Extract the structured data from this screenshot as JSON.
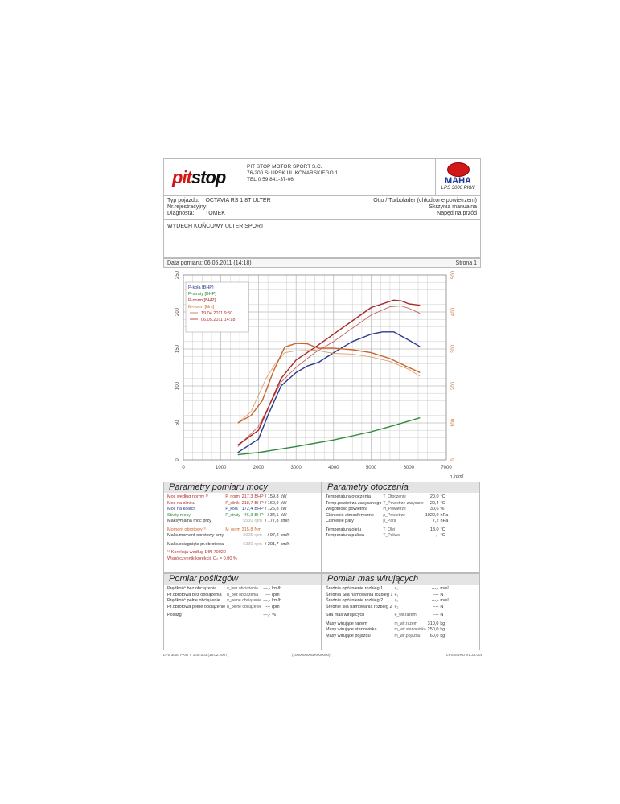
{
  "header": {
    "logo": "pit stop",
    "company": [
      "PIT STOP MOTOR SPORT S.C.",
      "76-200 SŁUPSK UL.KONARSKIEGO 1",
      "TEL.0 59 841-37-06"
    ],
    "maha_logo": "MAHA",
    "device": "LPS 3000 PKW"
  },
  "vehicle": {
    "type_label": "Typ pojazdu:",
    "type_value": "OCTAVIA RS 1,8T ULTER",
    "reg_label": "Nr.rejestracyjny:",
    "diag_label": "Diagnosta:",
    "diag_value": "TOMEK",
    "engine": "Otto / Turbolader (chłodzone powietrzem)",
    "gearbox": "Skrzynia manualna",
    "drive": "Napęd na przód"
  },
  "notes": "WYDECH KOŃCOWY ULTER SPORT",
  "date_line": "Data pomiaru: 06.05.2011 (14:18)",
  "page": "Strona 1",
  "chart_data": {
    "type": "line",
    "xlabel": "n [rpm]",
    "xlim": [
      0,
      7000
    ],
    "xticks": [
      0,
      1000,
      2000,
      3000,
      4000,
      5000,
      6000,
      7000
    ],
    "ylim_left": [
      0,
      250
    ],
    "yticks_left": [
      0,
      50,
      100,
      150,
      200,
      250
    ],
    "ylim_right": [
      0,
      500
    ],
    "yticks_right": [
      0,
      100,
      200,
      300,
      400,
      500
    ],
    "grid": true,
    "legend": "top-left",
    "legend_entries": [
      "P-koła [BHP]",
      "P-straty [BHP]",
      "P-norm [BHP]",
      "M-norm [Nm]"
    ],
    "runs": [
      "19.04.2011 9:50",
      "06.05.2011 14:18"
    ],
    "series": [
      {
        "name": "P-koła [BHP]",
        "run": "06.05.2011 14:18",
        "axis": "left",
        "color": "#2b3a8f",
        "x": [
          1450,
          2000,
          2250,
          2600,
          3000,
          3300,
          3600,
          4000,
          4500,
          5000,
          5300,
          5600,
          6000,
          6300
        ],
        "y": [
          10,
          28,
          60,
          100,
          118,
          127,
          132,
          145,
          160,
          170,
          173,
          173,
          162,
          153
        ]
      },
      {
        "name": "P-straty [BHP]",
        "run": "06.05.2011 14:18",
        "axis": "left",
        "color": "#2f8a3a",
        "x": [
          1450,
          2000,
          3000,
          4000,
          5000,
          5500,
          6300
        ],
        "y": [
          7,
          10,
          18,
          27,
          38,
          45,
          57
        ]
      },
      {
        "name": "P-norm [BHP]",
        "run": "19.04.2011 9:50",
        "axis": "left",
        "color": "#c86060",
        "x": [
          1450,
          2000,
          2600,
          3000,
          3500,
          4000,
          4500,
          5000,
          5500,
          5800,
          6000,
          6300
        ],
        "y": [
          18,
          45,
          105,
          125,
          145,
          160,
          178,
          196,
          207,
          208,
          205,
          198
        ]
      },
      {
        "name": "P-norm [BHP]",
        "run": "06.05.2011 14:18",
        "axis": "left",
        "color": "#a82828",
        "x": [
          1450,
          2000,
          2600,
          3000,
          3500,
          4000,
          4500,
          5000,
          5600,
          5800,
          6000,
          6300
        ],
        "y": [
          20,
          40,
          110,
          135,
          152,
          170,
          188,
          206,
          216,
          215,
          211,
          209
        ]
      },
      {
        "name": "M-norm [Nm]",
        "run": "19.04.2011 9:50",
        "axis": "right",
        "color": "#e0a070",
        "x": [
          1450,
          1800,
          2200,
          2450,
          2700,
          3000,
          3500,
          4000,
          4500,
          5000,
          5500,
          6000,
          6300
        ],
        "y": [
          100,
          130,
          220,
          260,
          290,
          295,
          297,
          288,
          286,
          278,
          266,
          245,
          226
        ]
      },
      {
        "name": "M-norm [Nm]",
        "run": "06.05.2011 14:18",
        "axis": "right",
        "color": "#c8642a",
        "x": [
          1450,
          1800,
          2100,
          2400,
          2700,
          3000,
          3300,
          3600,
          4000,
          4500,
          5000,
          5500,
          6000,
          6300
        ],
        "y": [
          100,
          120,
          160,
          240,
          305,
          315,
          314,
          302,
          302,
          298,
          290,
          274,
          250,
          236
        ]
      }
    ]
  },
  "power": {
    "title": "Parametry pomiaru mocy",
    "rows": [
      {
        "label": "Moc według normy ¹⁾",
        "sym": "P_norm",
        "v1": "217,3",
        "u1": "BHP",
        "v2": "/   159,8",
        "u2": "kW",
        "color": "#b03030"
      },
      {
        "label": "Moc na silniku",
        "sym": "P_silnik",
        "v1": "218,7",
        "u1": "BHP",
        "v2": "/   160,9",
        "u2": "kW",
        "color": "#b03030"
      },
      {
        "label": "Moc na kołach",
        "sym": "P_koła",
        "v1": "172,4",
        "u1": "BHP",
        "v2": "/   126,8",
        "u2": "kW",
        "color": "#2b3a8f"
      },
      {
        "label": "Straty mocy",
        "sym": "P_straty",
        "v1": "46,3",
        "u1": "BHP",
        "v2": "/   34,1",
        "u2": "kW",
        "color": "#2f8a3a"
      },
      {
        "label": "Maksymalna moc przy",
        "sym": "",
        "v1": "5530",
        "u1": "rpm",
        "v2": "/   177,8",
        "u2": "km/h",
        "color": "#333"
      },
      {
        "gap": true
      },
      {
        "label": "Moment obrotowy ¹⁾",
        "sym": "M_norm",
        "v1": "315,8",
        "u1": "Nm",
        "v2": "",
        "u2": "",
        "color": "#c8642a"
      },
      {
        "label": "Maks.moment obrotowy przy",
        "sym": "",
        "v1": "3025",
        "u1": "rpm",
        "v2": "/   97,2",
        "u2": "km/h",
        "color": "#333"
      },
      {
        "gap": true
      },
      {
        "label": "Maks.osiągnięta pr.obrotowa",
        "sym": "",
        "v1": "6330",
        "u1": "rpm",
        "v2": "/   201,7",
        "u2": "km/h",
        "color": "#333"
      },
      {
        "gap": true
      },
      {
        "label": "¹⁾ Korekcja według DIN 70020",
        "sym": "",
        "v1": "",
        "u1": "",
        "v2": "",
        "u2": "",
        "color": "#b03030"
      },
      {
        "label": "   Współczynnik korekcji: Q₀ =  0,00 %",
        "sym": "",
        "v1": "",
        "u1": "",
        "v2": "",
        "u2": "",
        "color": "#b03030"
      }
    ]
  },
  "ambient": {
    "title": "Parametry otoczenia",
    "rows": [
      {
        "label": "Temperatura otoczenia",
        "sym": "T_Otoczenie",
        "v2": "20,0",
        "u2": "°C"
      },
      {
        "label": "Temp.powietrza zasysanego",
        "sym": "T_Powietrze zasysane",
        "v2": "20,4",
        "u2": "°C"
      },
      {
        "label": "Wilgotność powietrza",
        "sym": "H_Powietrze",
        "v2": "30,6",
        "u2": "%"
      },
      {
        "label": "Ciśnienie atmosferyczne",
        "sym": "p_Powietrze",
        "v2": "1020,0",
        "u2": "hPa"
      },
      {
        "label": "Ciśnienie pary",
        "sym": "p_Para",
        "v2": "7,2",
        "u2": "hPa"
      },
      {
        "gap": true
      },
      {
        "label": "Temperatura oleju",
        "sym": "T_Olej",
        "v2": "18,0",
        "u2": "°C"
      },
      {
        "label": "Temperatura paliwa",
        "sym": "T_Paliwo",
        "v2": "---,-",
        "u2": "°C"
      }
    ]
  },
  "slip": {
    "title": "Pomiar poślizgów",
    "rows": [
      {
        "label": "Prędkość bez obciążenia",
        "sym": "v_bez obciążenia",
        "v2": "---,-",
        "u2": "km/h"
      },
      {
        "label": "Pr.obrotowa bez obciążenia",
        "sym": "n_bez obciążenia",
        "v2": "----",
        "u2": "rpm"
      },
      {
        "label": "Prędkość pełne obciążenie",
        "sym": "v_pełne obciążenie",
        "v2": "---,-",
        "u2": "km/h"
      },
      {
        "label": "Pr.obrotowa pełne obciążenie",
        "sym": "n_pełne obciążenie",
        "v2": "----",
        "u2": "rpm"
      },
      {
        "gap": true
      },
      {
        "label": "Poślizg",
        "sym": "",
        "v2": "---,-",
        "u2": "%"
      }
    ]
  },
  "mass": {
    "title": "Pomiar mas wirujących",
    "rows": [
      {
        "label": "Średnie opóźnienie rozbieg 1",
        "sym": "a₁",
        "v2": "---,-",
        "u2": "m/s²"
      },
      {
        "label": "Średnia Siła hamowania rozbieg 1",
        "sym": "F₁",
        "v2": "----",
        "u2": "N"
      },
      {
        "label": "Średnie opóźnienie rozbieg 2",
        "sym": "a₂",
        "v2": "---,-",
        "u2": "m/s²"
      },
      {
        "label": "Średnie siła hamowania rozbieg 2",
        "sym": "F₂",
        "v2": "----",
        "u2": "N"
      },
      {
        "gap": true
      },
      {
        "label": "Siła mas wirujących",
        "sym": "F_wir.razem",
        "v2": "----",
        "u2": "N"
      },
      {
        "gap": true
      },
      {
        "label": "Masy wirujące razem",
        "sym": "m_wir.razem",
        "v2": "310,0",
        "u2": "kg"
      },
      {
        "label": "Masy wirujące stanowiska",
        "sym": "m_wir.stanowiska",
        "v2": "250,0",
        "u2": "kg"
      },
      {
        "label": "Masy wirujące pojazdu",
        "sym": "m_wir.pojazdu",
        "v2": "60,0",
        "u2": "kg"
      }
    ]
  },
  "footer": {
    "left": "LPS 3000 PKW V 1.08.001 (18.02.2007)",
    "center": "(1000000000/R000000)",
    "right": "LPS-EURO V1.24.001"
  }
}
